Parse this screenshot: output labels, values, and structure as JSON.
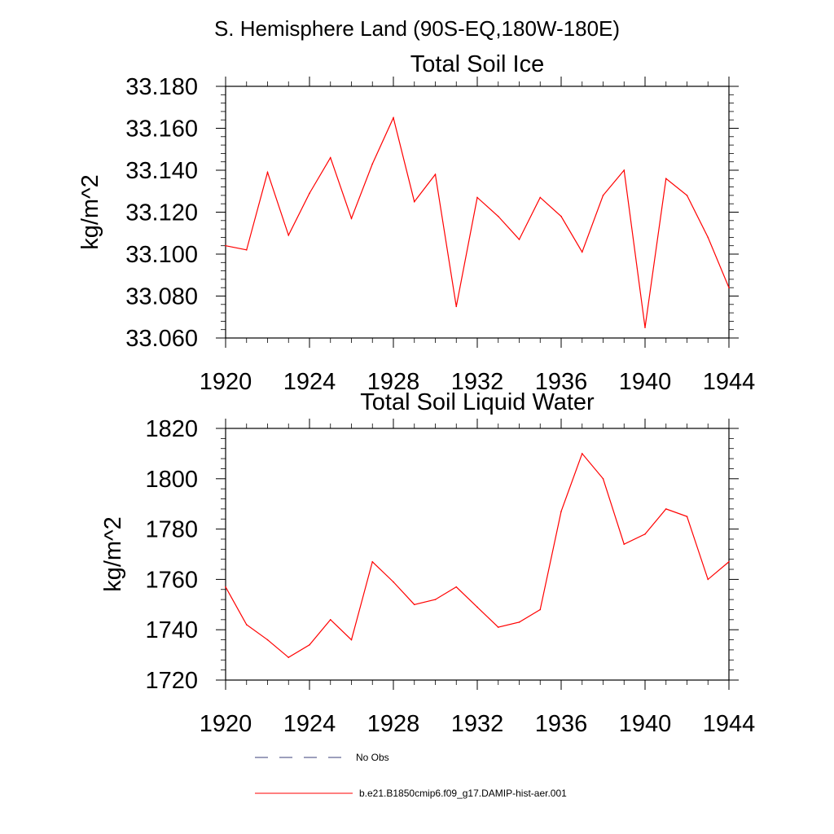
{
  "figure": {
    "title": "S. Hemisphere Land (90S-EQ,180W-180E)"
  },
  "chart_data": [
    {
      "type": "line",
      "title": "Total Soil Ice",
      "xlabel": "",
      "ylabel": "kg/m^2",
      "xlim": [
        1920,
        1944
      ],
      "ylim": [
        33.06,
        33.18
      ],
      "grid": false,
      "x_ticks": [
        "1920",
        "1924",
        "1928",
        "1932",
        "1936",
        "1940",
        "1944"
      ],
      "y_ticks": [
        "33.060",
        "33.080",
        "33.100",
        "33.120",
        "33.140",
        "33.160",
        "33.180"
      ],
      "x": [
        1920,
        1921,
        1922,
        1923,
        1924,
        1925,
        1926,
        1927,
        1928,
        1929,
        1930,
        1931,
        1932,
        1933,
        1934,
        1935,
        1936,
        1937,
        1938,
        1939,
        1940,
        1941,
        1942,
        1943,
        1944
      ],
      "series": [
        {
          "name": "b.e21.B1850cmip6.f09_g17.DAMIP-hist-aer.001",
          "color": "#ff0000",
          "values": [
            33.104,
            33.102,
            33.139,
            33.109,
            33.129,
            33.146,
            33.117,
            33.143,
            33.165,
            33.125,
            33.138,
            33.075,
            33.127,
            33.118,
            33.107,
            33.127,
            33.118,
            33.101,
            33.128,
            33.14,
            33.065,
            33.136,
            33.128,
            33.108,
            33.084
          ]
        }
      ]
    },
    {
      "type": "line",
      "title": "Total Soil Liquid Water",
      "xlabel": "",
      "ylabel": "kg/m^2",
      "xlim": [
        1920,
        1944
      ],
      "ylim": [
        1720,
        1820
      ],
      "grid": false,
      "x_ticks": [
        "1920",
        "1924",
        "1928",
        "1932",
        "1936",
        "1940",
        "1944"
      ],
      "y_ticks": [
        "1720",
        "1740",
        "1760",
        "1780",
        "1800",
        "1820"
      ],
      "x": [
        1920,
        1921,
        1922,
        1923,
        1924,
        1925,
        1926,
        1927,
        1928,
        1929,
        1930,
        1931,
        1932,
        1933,
        1934,
        1935,
        1936,
        1937,
        1938,
        1939,
        1940,
        1941,
        1942,
        1943,
        1944
      ],
      "series": [
        {
          "name": "b.e21.B1850cmip6.f09_g17.DAMIP-hist-aer.001",
          "color": "#ff0000",
          "values": [
            1757,
            1742,
            1736,
            1729,
            1734,
            1744,
            1736,
            1767,
            1759,
            1750,
            1752,
            1757,
            1749,
            1741,
            1743,
            1748,
            1787,
            1810,
            1800,
            1774,
            1778,
            1788,
            1785,
            1760,
            1767
          ]
        }
      ]
    }
  ],
  "legend": {
    "placement": "bottom",
    "entries": [
      {
        "label": "No Obs",
        "color": "#3a3f7a",
        "style": "dashed"
      },
      {
        "label": "b.e21.B1850cmip6.f09_g17.DAMIP-hist-aer.001",
        "color": "#ff0000",
        "style": "solid"
      }
    ]
  }
}
